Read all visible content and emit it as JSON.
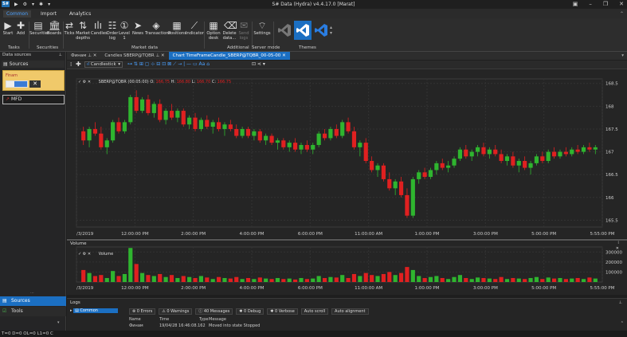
{
  "window": {
    "title": "S# Data (Hydra) v4.4.17.0 [Marat]"
  },
  "ribbon_tabs": [
    "Common",
    "Import",
    "Analytics"
  ],
  "ribbon": {
    "buttons": [
      {
        "label": "Start",
        "icon": "play-icon"
      },
      {
        "label": "Add",
        "icon": "plus-icon"
      },
      {
        "label": "Securities",
        "icon": "securities-icon"
      },
      {
        "label": "Boards",
        "icon": "bank-icon"
      },
      {
        "label": "Ticks",
        "icon": "ticks-icon"
      },
      {
        "label": "Market depths",
        "icon": "depth-icon"
      },
      {
        "label": "Candles",
        "icon": "candles-icon"
      },
      {
        "label": "Order log",
        "icon": "orderlog-icon"
      },
      {
        "label": "Level 1",
        "icon": "level1-icon"
      },
      {
        "label": "News",
        "icon": "news-icon"
      },
      {
        "label": "Transactions",
        "icon": "transactions-icon"
      },
      {
        "label": "Positions",
        "icon": "positions-icon"
      },
      {
        "label": "Indicator",
        "icon": "indicator-icon"
      },
      {
        "label": "Option desk",
        "icon": "option-desk-icon"
      },
      {
        "label": "Delete data...",
        "icon": "delete-data-icon"
      },
      {
        "label": "Send logs",
        "icon": "send-logs-icon"
      },
      {
        "label": "Settings",
        "icon": "settings-icon"
      }
    ],
    "groups": [
      "Tasks",
      "Securities",
      "Market data",
      "Additional",
      "Server mode",
      "Themes"
    ]
  },
  "left_panel": {
    "header": "Data sources",
    "sources_label": "Sources",
    "source_card_name": "Finam",
    "mfd_label": "MFD",
    "nav_sources": "Sources",
    "nav_tools": "Tools"
  },
  "doc_tabs": [
    {
      "label": "Финам",
      "active": false
    },
    {
      "label": "Candles SBERP@TQBR",
      "active": false
    },
    {
      "label": "Chart TimeFrameCandle_SBERP@TQBR_00-05-00",
      "active": true
    }
  ],
  "chart_toolbar": {
    "style_select": "Candlestick"
  },
  "chart_data": {
    "type": "candlestick",
    "legend": {
      "series": "SBERP@TQBR (00:05:00)",
      "labels": [
        "O:",
        "H:",
        "L:",
        "C:"
      ],
      "values": [
        "166.75",
        "166.80",
        "166.70",
        "166.75"
      ]
    },
    "x_ticks": [
      "/3/2019",
      "12:00:00 PM",
      "2:00:00 PM",
      "4:00:00 PM",
      "6:00:00 PM",
      "11:00:00 AM",
      "1:00:00 PM",
      "3:00:00 PM",
      "5:00:00 PM",
      "5:55:00 PM"
    ],
    "y_ticks": [
      "168.5",
      "168",
      "167.5",
      "167",
      "166.5",
      "166",
      "165.5"
    ],
    "ylim": [
      165.35,
      168.6
    ],
    "candles": [
      [
        167.45,
        167.55,
        167.15,
        167.25
      ],
      [
        167.25,
        167.55,
        167.1,
        167.5
      ],
      [
        167.5,
        167.65,
        167.35,
        167.4
      ],
      [
        167.4,
        167.55,
        167.05,
        167.1
      ],
      [
        167.1,
        167.3,
        166.95,
        167.25
      ],
      [
        167.25,
        167.7,
        167.2,
        167.65
      ],
      [
        167.65,
        167.75,
        167.4,
        167.45
      ],
      [
        167.45,
        167.7,
        167.4,
        167.65
      ],
      [
        167.65,
        168.25,
        167.6,
        168.2
      ],
      [
        168.2,
        168.35,
        167.85,
        167.9
      ],
      [
        167.9,
        168.2,
        167.85,
        168.15
      ],
      [
        168.15,
        168.25,
        167.8,
        167.85
      ],
      [
        167.85,
        168.1,
        167.75,
        168.05
      ],
      [
        168.05,
        168.15,
        167.65,
        167.7
      ],
      [
        167.7,
        167.95,
        167.6,
        167.9
      ],
      [
        167.9,
        168.05,
        167.7,
        167.75
      ],
      [
        167.75,
        167.95,
        167.65,
        167.9
      ],
      [
        167.9,
        167.95,
        167.55,
        167.6
      ],
      [
        167.6,
        167.8,
        167.5,
        167.75
      ],
      [
        167.75,
        167.85,
        167.45,
        167.5
      ],
      [
        167.5,
        167.75,
        167.45,
        167.7
      ],
      [
        167.7,
        167.8,
        167.5,
        167.55
      ],
      [
        167.55,
        167.7,
        167.4,
        167.65
      ],
      [
        167.65,
        167.75,
        167.45,
        167.5
      ],
      [
        167.5,
        167.65,
        167.35,
        167.6
      ],
      [
        167.6,
        167.7,
        167.45,
        167.5
      ],
      [
        167.5,
        167.6,
        167.3,
        167.35
      ],
      [
        167.35,
        167.55,
        167.3,
        167.5
      ],
      [
        167.5,
        167.55,
        167.3,
        167.35
      ],
      [
        167.35,
        167.5,
        167.25,
        167.45
      ],
      [
        167.45,
        167.5,
        167.2,
        167.25
      ],
      [
        167.25,
        167.4,
        167.15,
        167.35
      ],
      [
        167.35,
        167.4,
        167.15,
        167.2
      ],
      [
        167.2,
        167.3,
        167.05,
        167.25
      ],
      [
        167.25,
        167.3,
        167.05,
        167.1
      ],
      [
        167.1,
        167.25,
        167.0,
        167.2
      ],
      [
        167.2,
        167.3,
        167.0,
        167.05
      ],
      [
        167.05,
        167.2,
        166.95,
        167.15
      ],
      [
        167.15,
        167.25,
        167.0,
        167.05
      ],
      [
        167.05,
        167.2,
        166.95,
        167.15
      ],
      [
        167.15,
        167.45,
        167.1,
        167.4
      ],
      [
        167.4,
        167.5,
        167.25,
        167.3
      ],
      [
        167.3,
        167.55,
        167.25,
        167.5
      ],
      [
        167.5,
        167.6,
        167.3,
        167.35
      ],
      [
        167.35,
        167.7,
        167.3,
        167.65
      ],
      [
        167.65,
        167.75,
        167.4,
        167.45
      ],
      [
        167.45,
        167.55,
        167.05,
        167.1
      ],
      [
        167.1,
        167.25,
        166.9,
        167.2
      ],
      [
        167.2,
        167.3,
        166.75,
        166.8
      ],
      [
        166.8,
        166.9,
        166.55,
        166.6
      ],
      [
        166.6,
        166.75,
        166.45,
        166.7
      ],
      [
        166.7,
        166.75,
        166.35,
        166.4
      ],
      [
        166.4,
        166.55,
        166.15,
        166.2
      ],
      [
        166.2,
        166.4,
        166.05,
        166.35
      ],
      [
        166.35,
        166.45,
        166.0,
        166.05
      ],
      [
        166.05,
        166.2,
        165.55,
        165.6
      ],
      [
        165.6,
        166.45,
        165.55,
        166.4
      ],
      [
        166.4,
        166.6,
        166.3,
        166.55
      ],
      [
        166.55,
        166.65,
        166.4,
        166.45
      ],
      [
        166.45,
        166.65,
        166.4,
        166.6
      ],
      [
        166.6,
        166.8,
        166.5,
        166.75
      ],
      [
        166.75,
        166.85,
        166.6,
        166.65
      ],
      [
        166.65,
        166.8,
        166.55,
        166.7
      ],
      [
        166.7,
        166.9,
        166.65,
        166.85
      ],
      [
        166.85,
        167.1,
        166.8,
        167.05
      ],
      [
        167.05,
        167.15,
        166.85,
        166.9
      ],
      [
        166.9,
        167.05,
        166.8,
        167.0
      ],
      [
        167.0,
        167.15,
        166.9,
        167.1
      ],
      [
        167.1,
        167.2,
        166.9,
        166.95
      ],
      [
        166.95,
        167.1,
        166.85,
        167.05
      ],
      [
        167.05,
        167.15,
        166.9,
        166.95
      ],
      [
        166.95,
        167.05,
        166.75,
        166.8
      ],
      [
        166.8,
        166.95,
        166.7,
        166.9
      ],
      [
        166.9,
        167.0,
        166.65,
        166.7
      ],
      [
        166.7,
        166.85,
        166.55,
        166.8
      ],
      [
        166.8,
        166.9,
        166.6,
        166.65
      ],
      [
        166.65,
        166.8,
        166.5,
        166.75
      ],
      [
        166.75,
        166.95,
        166.7,
        166.9
      ],
      [
        166.9,
        167.0,
        166.75,
        166.8
      ],
      [
        166.8,
        167.05,
        166.75,
        167.0
      ],
      [
        167.0,
        167.1,
        166.85,
        166.9
      ],
      [
        166.9,
        167.05,
        166.85,
        167.0
      ],
      [
        167.0,
        167.1,
        166.9,
        166.95
      ],
      [
        166.95,
        167.1,
        166.9,
        167.05
      ],
      [
        167.05,
        167.15,
        166.95,
        167.0
      ],
      [
        167.0,
        167.15,
        166.95,
        167.1
      ],
      [
        167.1,
        167.2,
        167.0,
        167.05
      ],
      [
        167.05,
        167.15,
        166.95,
        167.1
      ]
    ],
    "volume_label": "Volume",
    "volume_y_ticks": [
      "300000",
      "200000",
      "100000"
    ],
    "volume_ylim": [
      0,
      350000
    ],
    "volumes": [
      120000,
      90000,
      60000,
      70000,
      40000,
      110000,
      60000,
      80000,
      340000,
      180000,
      90000,
      70000,
      60000,
      80000,
      50000,
      70000,
      40000,
      60000,
      50000,
      40000,
      60000,
      45000,
      30000,
      50000,
      40000,
      35000,
      50000,
      30000,
      40000,
      30000,
      45000,
      35000,
      30000,
      40000,
      30000,
      35000,
      25000,
      40000,
      30000,
      35000,
      60000,
      40000,
      50000,
      45000,
      70000,
      40000,
      80000,
      60000,
      90000,
      70000,
      60000,
      80000,
      100000,
      70000,
      90000,
      150000,
      120000,
      60000,
      40000,
      50000,
      60000,
      40000,
      30000,
      50000,
      70000,
      40000,
      30000,
      45000,
      40000,
      35000,
      30000,
      50000,
      30000,
      40000,
      35000,
      30000,
      40000,
      50000,
      30000,
      45000,
      35000,
      40000,
      30000,
      35000,
      40000,
      30000,
      45000,
      35000
    ]
  },
  "logs": {
    "title": "Logs",
    "source": "Common",
    "filters": [
      "0 Errors",
      "0 Warnings",
      "40 Messages",
      "0 Debug",
      "0 Verbose",
      "Auto scroll",
      "Auto alignment"
    ],
    "columns": [
      "Name",
      "Time",
      "Type",
      "Message"
    ],
    "row": [
      "Финам",
      "19/04/28 16:46:08.162",
      "",
      "Moved into state Stopped"
    ]
  },
  "status": {
    "text": "T=0    D=0    OL=0    L1=0    C"
  },
  "colors": {
    "accent": "#1b6fc2",
    "up": "#2fb52f",
    "down": "#e02020",
    "bg": "#252525"
  }
}
